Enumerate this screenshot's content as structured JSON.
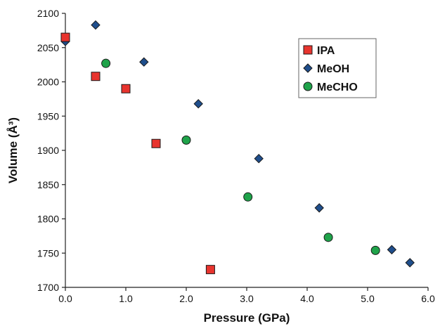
{
  "chart_data": {
    "type": "scatter",
    "title": "",
    "xlabel": "Pressure (GPa)",
    "ylabel": "Volume (Å³)",
    "xlim": [
      0.0,
      6.0
    ],
    "ylim": [
      1700,
      2100
    ],
    "x_ticks": [
      "0.0",
      "1.0",
      "2.0",
      "3.0",
      "4.0",
      "5.0",
      "6.0"
    ],
    "y_ticks": [
      "1700",
      "1750",
      "1800",
      "1850",
      "1900",
      "1950",
      "2000",
      "2050",
      "2100"
    ],
    "grid": false,
    "legend_position": "top-right",
    "series": [
      {
        "name": "IPA",
        "marker": "square",
        "color": "#e8342e",
        "points": [
          [
            0.0,
            2065
          ],
          [
            0.5,
            2008
          ],
          [
            1.0,
            1990
          ],
          [
            1.5,
            1910
          ],
          [
            2.4,
            1726
          ]
        ]
      },
      {
        "name": "MeOH",
        "marker": "diamond",
        "color": "#1f4e8c",
        "points": [
          [
            0.0,
            2059
          ],
          [
            0.5,
            2083
          ],
          [
            1.3,
            2029
          ],
          [
            2.2,
            1968
          ],
          [
            3.2,
            1888
          ],
          [
            4.2,
            1816
          ],
          [
            5.4,
            1755
          ],
          [
            5.7,
            1736
          ]
        ]
      },
      {
        "name": "MeCHO",
        "marker": "circle",
        "color": "#1fa34a",
        "points": [
          [
            0.0,
            2063
          ],
          [
            0.67,
            2027
          ],
          [
            2.0,
            1915
          ],
          [
            3.02,
            1832
          ],
          [
            4.35,
            1773
          ],
          [
            5.13,
            1754
          ]
        ]
      }
    ]
  }
}
